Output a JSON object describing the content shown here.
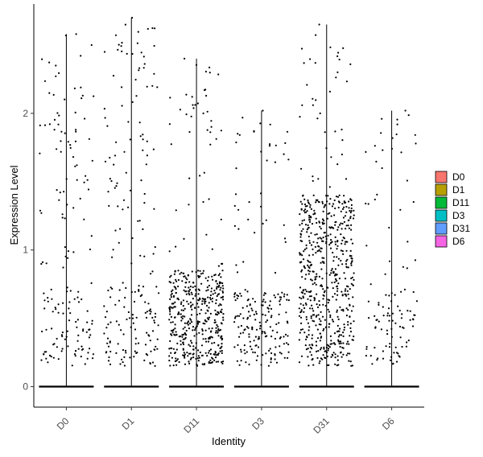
{
  "chart_data": {
    "type": "violin-scatter",
    "xlabel": "Identity",
    "ylabel": "Expression Level",
    "categories": [
      "D0",
      "D1",
      "D11",
      "D3",
      "D31",
      "D6"
    ],
    "ylim": [
      -0.15,
      2.8
    ],
    "yticks": [
      "0",
      "1",
      "2"
    ],
    "ytick_values": [
      0,
      1,
      2
    ],
    "grid": false,
    "legend_placement": "right",
    "groups": [
      {
        "name": "D0",
        "color": "#F8766D",
        "max": 2.58,
        "n_zero": 260,
        "n_pos": 160,
        "dense_max": 0.72,
        "dense_frac": 0.45
      },
      {
        "name": "D1",
        "color": "#B79F00",
        "max": 2.7,
        "n_zero": 260,
        "n_pos": 190,
        "dense_max": 0.75,
        "dense_frac": 0.45
      },
      {
        "name": "D11",
        "color": "#00BA38",
        "max": 2.4,
        "n_zero": 260,
        "n_pos": 480,
        "dense_max": 0.85,
        "dense_frac": 0.88
      },
      {
        "name": "D3",
        "color": "#00BFC4",
        "max": 2.02,
        "n_zero": 260,
        "n_pos": 200,
        "dense_max": 0.7,
        "dense_frac": 0.75
      },
      {
        "name": "D31",
        "color": "#619CFF",
        "max": 2.65,
        "n_zero": 260,
        "n_pos": 620,
        "dense_max": 1.4,
        "dense_frac": 0.88
      },
      {
        "name": "D6",
        "color": "#F564E3",
        "max": 2.02,
        "n_zero": 260,
        "n_pos": 110,
        "dense_max": 0.7,
        "dense_frac": 0.6
      }
    ]
  }
}
